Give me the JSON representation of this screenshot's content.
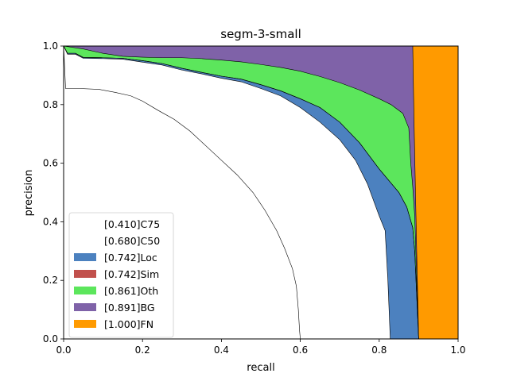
{
  "chart_data": {
    "type": "area",
    "title": "segm-3-small",
    "xlabel": "recall",
    "ylabel": "precision",
    "xlim": [
      0,
      1
    ],
    "ylim": [
      0,
      1
    ],
    "xticks": [
      "0.0",
      "0.2",
      "0.4",
      "0.6",
      "0.8",
      "1.0"
    ],
    "yticks": [
      "0.0",
      "0.2",
      "0.4",
      "0.6",
      "0.8",
      "1.0"
    ],
    "grid": false,
    "legend_position": "lower-left",
    "series": [
      {
        "name": "[0.410]C75",
        "color": "#ffffff",
        "points": [
          [
            0,
            1.0
          ],
          [
            0.005,
            0.855
          ],
          [
            0.04,
            0.855
          ],
          [
            0.09,
            0.852
          ],
          [
            0.13,
            0.842
          ],
          [
            0.17,
            0.83
          ],
          [
            0.2,
            0.812
          ],
          [
            0.24,
            0.78
          ],
          [
            0.28,
            0.75
          ],
          [
            0.32,
            0.71
          ],
          [
            0.36,
            0.66
          ],
          [
            0.4,
            0.61
          ],
          [
            0.44,
            0.56
          ],
          [
            0.48,
            0.5
          ],
          [
            0.51,
            0.44
          ],
          [
            0.54,
            0.37
          ],
          [
            0.56,
            0.31
          ],
          [
            0.58,
            0.24
          ],
          [
            0.59,
            0.18
          ],
          [
            0.595,
            0.1
          ],
          [
            0.598,
            0.03
          ],
          [
            0.6,
            0.0
          ]
        ]
      },
      {
        "name": "[0.680]C50",
        "color": "#ffffff",
        "points": [
          [
            0,
            1.0
          ],
          [
            0.01,
            0.972
          ],
          [
            0.03,
            0.972
          ],
          [
            0.05,
            0.958
          ],
          [
            0.1,
            0.957
          ],
          [
            0.15,
            0.955
          ],
          [
            0.2,
            0.945
          ],
          [
            0.25,
            0.935
          ],
          [
            0.3,
            0.918
          ],
          [
            0.35,
            0.905
          ],
          [
            0.4,
            0.89
          ],
          [
            0.45,
            0.878
          ],
          [
            0.5,
            0.855
          ],
          [
            0.55,
            0.83
          ],
          [
            0.6,
            0.79
          ],
          [
            0.65,
            0.74
          ],
          [
            0.7,
            0.68
          ],
          [
            0.74,
            0.61
          ],
          [
            0.77,
            0.53
          ],
          [
            0.8,
            0.42
          ],
          [
            0.815,
            0.37
          ],
          [
            0.822,
            0.2
          ],
          [
            0.828,
            0.0
          ]
        ]
      },
      {
        "name": "[0.742]Loc",
        "color": "#4c81bf",
        "points": [
          [
            0,
            1.0
          ],
          [
            0.01,
            0.975
          ],
          [
            0.03,
            0.975
          ],
          [
            0.05,
            0.961
          ],
          [
            0.1,
            0.96
          ],
          [
            0.15,
            0.958
          ],
          [
            0.2,
            0.95
          ],
          [
            0.25,
            0.94
          ],
          [
            0.3,
            0.924
          ],
          [
            0.35,
            0.91
          ],
          [
            0.4,
            0.897
          ],
          [
            0.45,
            0.887
          ],
          [
            0.5,
            0.868
          ],
          [
            0.55,
            0.847
          ],
          [
            0.6,
            0.82
          ],
          [
            0.65,
            0.79
          ],
          [
            0.7,
            0.74
          ],
          [
            0.75,
            0.67
          ],
          [
            0.8,
            0.58
          ],
          [
            0.85,
            0.5
          ],
          [
            0.87,
            0.45
          ],
          [
            0.885,
            0.38
          ],
          [
            0.89,
            0.3
          ],
          [
            0.895,
            0.15
          ],
          [
            0.9,
            0.0
          ]
        ]
      },
      {
        "name": "[0.742]Sim",
        "color": "#c1504c",
        "points": [
          [
            0,
            1.0
          ],
          [
            0.01,
            0.975
          ],
          [
            0.03,
            0.975
          ],
          [
            0.05,
            0.961
          ],
          [
            0.1,
            0.96
          ],
          [
            0.15,
            0.958
          ],
          [
            0.2,
            0.95
          ],
          [
            0.25,
            0.94
          ],
          [
            0.3,
            0.924
          ],
          [
            0.35,
            0.91
          ],
          [
            0.4,
            0.897
          ],
          [
            0.45,
            0.887
          ],
          [
            0.5,
            0.868
          ],
          [
            0.55,
            0.847
          ],
          [
            0.6,
            0.82
          ],
          [
            0.65,
            0.79
          ],
          [
            0.7,
            0.74
          ],
          [
            0.75,
            0.67
          ],
          [
            0.8,
            0.58
          ],
          [
            0.85,
            0.5
          ],
          [
            0.87,
            0.45
          ],
          [
            0.885,
            0.38
          ],
          [
            0.89,
            0.3
          ],
          [
            0.895,
            0.15
          ],
          [
            0.9,
            0.0
          ]
        ]
      },
      {
        "name": "[0.861]Oth",
        "color": "#5ce65c",
        "points": [
          [
            0,
            1.0
          ],
          [
            0.05,
            0.99
          ],
          [
            0.1,
            0.975
          ],
          [
            0.15,
            0.965
          ],
          [
            0.2,
            0.962
          ],
          [
            0.25,
            0.96
          ],
          [
            0.3,
            0.96
          ],
          [
            0.35,
            0.957
          ],
          [
            0.4,
            0.952
          ],
          [
            0.45,
            0.946
          ],
          [
            0.5,
            0.937
          ],
          [
            0.55,
            0.927
          ],
          [
            0.6,
            0.914
          ],
          [
            0.65,
            0.896
          ],
          [
            0.7,
            0.875
          ],
          [
            0.75,
            0.85
          ],
          [
            0.8,
            0.82
          ],
          [
            0.83,
            0.8
          ],
          [
            0.86,
            0.77
          ],
          [
            0.875,
            0.72
          ],
          [
            0.88,
            0.6
          ],
          [
            0.885,
            0.52
          ],
          [
            0.89,
            0.42
          ],
          [
            0.895,
            0.2
          ],
          [
            0.9,
            0.0
          ]
        ]
      },
      {
        "name": "[0.891]BG",
        "color": "#7f62a8",
        "points": [
          [
            0,
            1.0
          ],
          [
            0.2,
            1.0
          ],
          [
            0.4,
            1.0
          ],
          [
            0.6,
            1.0
          ],
          [
            0.8,
            1.0
          ],
          [
            0.885,
            1.0
          ],
          [
            0.888,
            0.76
          ],
          [
            0.895,
            0.3
          ],
          [
            0.9,
            0.0
          ]
        ]
      },
      {
        "name": "[1.000]FN",
        "color": "#ff9a00",
        "points": [
          [
            0,
            1.0
          ],
          [
            1.0,
            1.0
          ],
          [
            1.0,
            0.0
          ]
        ]
      }
    ]
  }
}
